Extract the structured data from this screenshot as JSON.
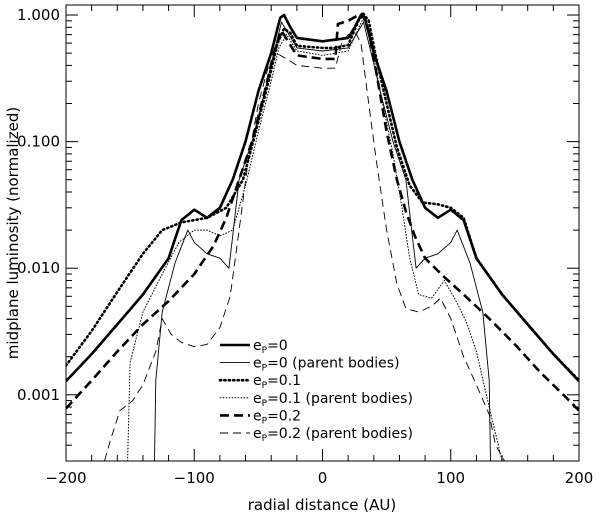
{
  "chart_data": {
    "type": "line",
    "title": "",
    "xlabel": "radial distance (AU)",
    "ylabel": "midplane luminosity (normalized)",
    "xlim": [
      -200,
      200
    ],
    "ylim": [
      0.0003,
      1.2
    ],
    "yscale": "log",
    "x_ticks": [
      -200,
      -100,
      0,
      100,
      200
    ],
    "x_tick_labels": [
      "−200",
      "−100",
      "0",
      "100",
      "200"
    ],
    "y_ticks": [
      0.001,
      0.01,
      0.1,
      1.0
    ],
    "y_tick_labels": [
      "0.001",
      "0.010",
      "0.100",
      "1.000"
    ],
    "grid": false,
    "legend_position": "bottom-center",
    "series": [
      {
        "legend_main": "e",
        "legend_sub": "P",
        "legend_rest": "=0",
        "style": "solid-thick",
        "points": [
          [
            -200,
            0.00128
          ],
          [
            -180,
            0.0021
          ],
          [
            -160,
            0.0036
          ],
          [
            -140,
            0.0062
          ],
          [
            -120,
            0.012
          ],
          [
            -110,
            0.024
          ],
          [
            -100,
            0.029
          ],
          [
            -90,
            0.025
          ],
          [
            -80,
            0.03
          ],
          [
            -70,
            0.05
          ],
          [
            -60,
            0.1
          ],
          [
            -50,
            0.25
          ],
          [
            -40,
            0.5
          ],
          [
            -33,
            0.95
          ],
          [
            -30,
            1.0
          ],
          [
            -25,
            0.8
          ],
          [
            -20,
            0.66
          ],
          [
            0,
            0.62
          ],
          [
            20,
            0.66
          ],
          [
            25,
            0.8
          ],
          [
            30,
            1.0
          ],
          [
            33,
            0.95
          ],
          [
            40,
            0.5
          ],
          [
            50,
            0.25
          ],
          [
            60,
            0.1
          ],
          [
            70,
            0.05
          ],
          [
            80,
            0.03
          ],
          [
            90,
            0.025
          ],
          [
            100,
            0.029
          ],
          [
            110,
            0.024
          ],
          [
            120,
            0.012
          ],
          [
            140,
            0.0062
          ],
          [
            160,
            0.0036
          ],
          [
            180,
            0.0021
          ],
          [
            200,
            0.00128
          ]
        ]
      },
      {
        "legend_main": "e",
        "legend_sub": "P",
        "legend_rest": "=0 (parent bodies)",
        "style": "solid-thin",
        "points": [
          [
            -131,
            0.0003
          ],
          [
            -130,
            0.0013
          ],
          [
            -125,
            0.0045
          ],
          [
            -115,
            0.011
          ],
          [
            -105,
            0.02
          ],
          [
            -100,
            0.016
          ],
          [
            -90,
            0.013
          ],
          [
            -80,
            0.012
          ],
          [
            -73,
            0.01
          ],
          [
            -70,
            0.018
          ],
          [
            -65,
            0.05
          ],
          [
            -55,
            0.1
          ],
          [
            -45,
            0.25
          ],
          [
            -38,
            0.5
          ],
          [
            -32,
            0.88
          ],
          [
            -28,
            0.75
          ],
          [
            -20,
            0.55
          ],
          [
            0,
            0.52
          ],
          [
            20,
            0.55
          ],
          [
            28,
            0.75
          ],
          [
            32,
            0.88
          ],
          [
            38,
            0.5
          ],
          [
            45,
            0.25
          ],
          [
            55,
            0.1
          ],
          [
            65,
            0.05
          ],
          [
            70,
            0.018
          ],
          [
            73,
            0.01
          ],
          [
            80,
            0.012
          ],
          [
            90,
            0.013
          ],
          [
            100,
            0.016
          ],
          [
            105,
            0.02
          ],
          [
            115,
            0.011
          ],
          [
            125,
            0.0045
          ],
          [
            130,
            0.0013
          ],
          [
            131,
            0.0003
          ]
        ]
      },
      {
        "legend_main": "e",
        "legend_sub": "P",
        "legend_rest": "=0.1",
        "style": "dotted-thick",
        "points": [
          [
            -200,
            0.0017
          ],
          [
            -180,
            0.0032
          ],
          [
            -160,
            0.0065
          ],
          [
            -140,
            0.013
          ],
          [
            -125,
            0.02
          ],
          [
            -110,
            0.023
          ],
          [
            -90,
            0.025
          ],
          [
            -75,
            0.03
          ],
          [
            -62,
            0.05
          ],
          [
            -52,
            0.12
          ],
          [
            -42,
            0.3
          ],
          [
            -35,
            0.6
          ],
          [
            -30,
            0.78
          ],
          [
            -25,
            0.72
          ],
          [
            -20,
            0.57
          ],
          [
            0,
            0.55
          ],
          [
            10,
            0.55
          ],
          [
            20,
            0.58
          ],
          [
            28,
            0.9
          ],
          [
            32,
            1.02
          ],
          [
            36,
            0.9
          ],
          [
            42,
            0.45
          ],
          [
            50,
            0.2
          ],
          [
            58,
            0.09
          ],
          [
            68,
            0.045
          ],
          [
            78,
            0.033
          ],
          [
            90,
            0.032
          ],
          [
            100,
            0.03
          ],
          [
            110,
            0.025
          ],
          [
            120,
            0.012
          ],
          [
            140,
            0.0062
          ],
          [
            160,
            0.0036
          ],
          [
            180,
            0.0021
          ],
          [
            200,
            0.0013
          ]
        ]
      },
      {
        "legend_main": "e",
        "legend_sub": "P",
        "legend_rest": "=0.1 (parent bodies)",
        "style": "dotted-thin",
        "points": [
          [
            -152,
            0.0003
          ],
          [
            -150,
            0.0018
          ],
          [
            -140,
            0.0045
          ],
          [
            -125,
            0.009
          ],
          [
            -112,
            0.016
          ],
          [
            -100,
            0.02
          ],
          [
            -90,
            0.02
          ],
          [
            -80,
            0.018
          ],
          [
            -70,
            0.02
          ],
          [
            -60,
            0.045
          ],
          [
            -50,
            0.12
          ],
          [
            -40,
            0.3
          ],
          [
            -34,
            0.55
          ],
          [
            -28,
            0.7
          ],
          [
            -20,
            0.52
          ],
          [
            0,
            0.48
          ],
          [
            20,
            0.52
          ],
          [
            28,
            0.78
          ],
          [
            32,
            0.95
          ],
          [
            38,
            0.6
          ],
          [
            45,
            0.25
          ],
          [
            55,
            0.08
          ],
          [
            62,
            0.03
          ],
          [
            68,
            0.012
          ],
          [
            75,
            0.0062
          ],
          [
            85,
            0.0058
          ],
          [
            95,
            0.008
          ],
          [
            103,
            0.0058
          ],
          [
            112,
            0.0038
          ],
          [
            120,
            0.0022
          ],
          [
            130,
            0.0008
          ],
          [
            140,
            0.0003
          ]
        ]
      },
      {
        "legend_main": "e",
        "legend_sub": "P",
        "legend_rest": "=0.2",
        "style": "dashed-thick",
        "points": [
          [
            -200,
            0.00078
          ],
          [
            -180,
            0.0013
          ],
          [
            -160,
            0.0022
          ],
          [
            -140,
            0.0036
          ],
          [
            -120,
            0.0055
          ],
          [
            -100,
            0.009
          ],
          [
            -85,
            0.015
          ],
          [
            -75,
            0.025
          ],
          [
            -65,
            0.05
          ],
          [
            -55,
            0.1
          ],
          [
            -45,
            0.25
          ],
          [
            -38,
            0.5
          ],
          [
            -32,
            0.75
          ],
          [
            -27,
            0.62
          ],
          [
            -20,
            0.48
          ],
          [
            0,
            0.45
          ],
          [
            10,
            0.45
          ],
          [
            12,
            0.85
          ],
          [
            20,
            0.9
          ],
          [
            28,
            1.0
          ],
          [
            31,
            1.02
          ],
          [
            36,
            0.75
          ],
          [
            42,
            0.35
          ],
          [
            50,
            0.12
          ],
          [
            58,
            0.05
          ],
          [
            65,
            0.028
          ],
          [
            72,
            0.018
          ],
          [
            80,
            0.012
          ],
          [
            95,
            0.0085
          ],
          [
            110,
            0.0062
          ],
          [
            130,
            0.004
          ],
          [
            150,
            0.0025
          ],
          [
            170,
            0.0015
          ],
          [
            190,
            0.00095
          ],
          [
            200,
            0.00075
          ]
        ]
      },
      {
        "legend_main": "e",
        "legend_sub": "P",
        "legend_rest": "=0.2 (parent bodies)",
        "style": "dashed-thin",
        "points": [
          [
            -170,
            0.0003
          ],
          [
            -165,
            0.00045
          ],
          [
            -158,
            0.00075
          ],
          [
            -148,
            0.0009
          ],
          [
            -140,
            0.0012
          ],
          [
            -130,
            0.0022
          ],
          [
            -125,
            0.004
          ],
          [
            -118,
            0.003
          ],
          [
            -110,
            0.0026
          ],
          [
            -100,
            0.0024
          ],
          [
            -90,
            0.0025
          ],
          [
            -80,
            0.0034
          ],
          [
            -72,
            0.006
          ],
          [
            -65,
            0.02
          ],
          [
            -58,
            0.07
          ],
          [
            -50,
            0.2
          ],
          [
            -42,
            0.4
          ],
          [
            -36,
            0.5
          ],
          [
            -28,
            0.45
          ],
          [
            -20,
            0.4
          ],
          [
            0,
            0.38
          ],
          [
            10,
            0.38
          ],
          [
            15,
            0.6
          ],
          [
            20,
            0.7
          ],
          [
            26,
            0.72
          ],
          [
            30,
            0.6
          ],
          [
            36,
            0.2
          ],
          [
            42,
            0.07
          ],
          [
            50,
            0.02
          ],
          [
            58,
            0.0075
          ],
          [
            65,
            0.0048
          ],
          [
            75,
            0.0045
          ],
          [
            85,
            0.005
          ],
          [
            92,
            0.0058
          ],
          [
            100,
            0.004
          ],
          [
            110,
            0.002
          ],
          [
            120,
            0.0012
          ],
          [
            130,
            0.0007
          ],
          [
            135,
            0.0004
          ],
          [
            142,
            0.0003
          ]
        ]
      }
    ]
  }
}
